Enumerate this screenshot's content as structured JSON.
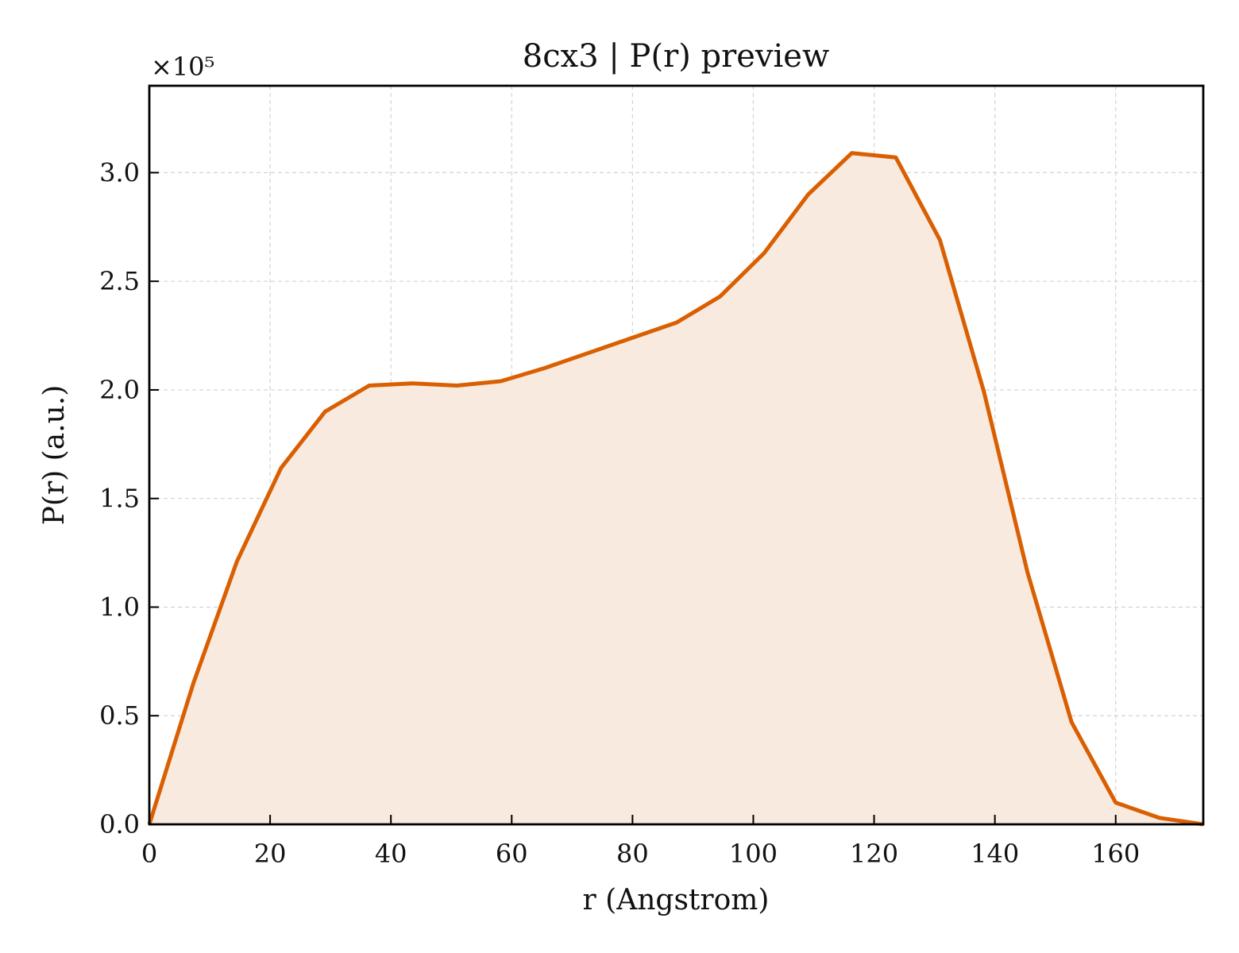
{
  "chart_data": {
    "type": "area",
    "title": "8cx3 | P(r) preview",
    "xlabel": "r (Angstrom)",
    "ylabel": "P(r) (a.u.)",
    "y_multiplier_label": "×10⁵",
    "y_multiplier": 100000,
    "xlim": [
      0,
      174.5
    ],
    "ylim": [
      0,
      3.4
    ],
    "xticks": [
      0,
      20,
      40,
      60,
      80,
      100,
      120,
      140,
      160
    ],
    "xtick_labels": [
      "0",
      "20",
      "40",
      "60",
      "80",
      "100",
      "120",
      "140",
      "160"
    ],
    "yticks": [
      0,
      0.5,
      1.0,
      1.5,
      2.0,
      2.5,
      3.0
    ],
    "ytick_labels": [
      "0.0",
      "0.5",
      "1.0",
      "1.5",
      "2.0",
      "2.5",
      "3.0"
    ],
    "grid": true,
    "line_color": "#d95f02",
    "fill_color": "#f9eadf",
    "series": [
      {
        "x": [
          0,
          7.3,
          14.5,
          21.8,
          29.1,
          36.4,
          43.6,
          50.9,
          58.2,
          65.4,
          72.7,
          80.0,
          87.3,
          94.5,
          101.8,
          109.1,
          116.3,
          123.6,
          130.9,
          138.2,
          145.4,
          152.7,
          160.0,
          167.2,
          174.5
        ],
        "y": [
          0.0,
          0.65,
          1.21,
          1.64,
          1.9,
          2.02,
          2.03,
          2.02,
          2.04,
          2.1,
          2.17,
          2.24,
          2.31,
          2.43,
          2.63,
          2.9,
          3.09,
          3.07,
          2.69,
          1.99,
          1.16,
          0.47,
          0.1,
          0.03,
          0.0
        ]
      }
    ]
  }
}
